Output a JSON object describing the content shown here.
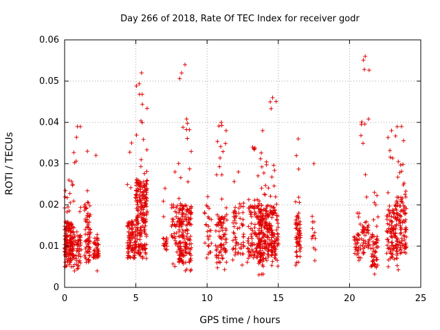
{
  "chart_data": {
    "type": "scatter",
    "title": "Day 266 of 2018, Rate Of TEC Index for receiver godr",
    "xlabel": "GPS time / hours",
    "ylabel": "ROTI / TECUs",
    "xlim": [
      0,
      25
    ],
    "ylim": [
      0,
      0.06
    ],
    "xticks": [
      0,
      5,
      10,
      15,
      20,
      25
    ],
    "xtick_labels": [
      "0",
      "5",
      "10",
      "15",
      "20",
      "25"
    ],
    "yticks": [
      0,
      0.01,
      0.02,
      0.03,
      0.04,
      0.05,
      0.06
    ],
    "ytick_labels": [
      "0",
      "0.01",
      "0.02",
      "0.03",
      "0.04",
      "0.05",
      "0.06"
    ],
    "grid": true,
    "marker": "plus",
    "color": "#e00000",
    "clusters": [
      {
        "x": [
          0.0,
          0.6
        ],
        "y": [
          0.006,
          0.016
        ],
        "n": 160,
        "spread": [
          0.005,
          0.026
        ]
      },
      {
        "x": [
          0.6,
          1.2
        ],
        "y": [
          0.005,
          0.013
        ],
        "n": 60,
        "spread": [
          0.004,
          0.039
        ]
      },
      {
        "x": [
          1.4,
          1.8
        ],
        "y": [
          0.006,
          0.02
        ],
        "n": 70,
        "spread": [
          0.006,
          0.033
        ]
      },
      {
        "x": [
          2.0,
          2.4
        ],
        "y": [
          0.007,
          0.012
        ],
        "n": 45,
        "spread": [
          0.004,
          0.032
        ]
      },
      {
        "x": [
          4.4,
          5.0
        ],
        "y": [
          0.007,
          0.016
        ],
        "n": 90,
        "spread": [
          0.007,
          0.035
        ]
      },
      {
        "x": [
          5.0,
          5.8
        ],
        "y": [
          0.008,
          0.026
        ],
        "n": 220,
        "spread": [
          0.007,
          0.052
        ]
      },
      {
        "x": [
          6.9,
          7.2
        ],
        "y": [
          0.009,
          0.012
        ],
        "n": 20,
        "spread": [
          0.006,
          0.024
        ]
      },
      {
        "x": [
          7.5,
          8.0
        ],
        "y": [
          0.008,
          0.02
        ],
        "n": 35,
        "spread": [
          0.005,
          0.028
        ]
      },
      {
        "x": [
          8.0,
          8.9
        ],
        "y": [
          0.006,
          0.02
        ],
        "n": 180,
        "spread": [
          0.004,
          0.054
        ]
      },
      {
        "x": [
          9.8,
          10.3
        ],
        "y": [
          0.008,
          0.02
        ],
        "n": 25,
        "spread": [
          0.007,
          0.022
        ]
      },
      {
        "x": [
          10.6,
          11.4
        ],
        "y": [
          0.006,
          0.018
        ],
        "n": 90,
        "spread": [
          0.004,
          0.04
        ]
      },
      {
        "x": [
          11.8,
          12.6
        ],
        "y": [
          0.008,
          0.02
        ],
        "n": 60,
        "spread": [
          0.005,
          0.028
        ]
      },
      {
        "x": [
          12.8,
          13.6
        ],
        "y": [
          0.007,
          0.02
        ],
        "n": 80,
        "spread": [
          0.006,
          0.034
        ]
      },
      {
        "x": [
          13.6,
          14.2
        ],
        "y": [
          0.006,
          0.02
        ],
        "n": 150,
        "spread": [
          0.003,
          0.038
        ]
      },
      {
        "x": [
          14.2,
          15.0
        ],
        "y": [
          0.007,
          0.02
        ],
        "n": 140,
        "spread": [
          0.005,
          0.046
        ]
      },
      {
        "x": [
          16.2,
          16.6
        ],
        "y": [
          0.006,
          0.018
        ],
        "n": 60,
        "spread": [
          0.005,
          0.036
        ]
      },
      {
        "x": [
          17.3,
          17.7
        ],
        "y": [
          0.006,
          0.018
        ],
        "n": 12,
        "spread": [
          0.006,
          0.03
        ]
      },
      {
        "x": [
          20.3,
          20.8
        ],
        "y": [
          0.007,
          0.013
        ],
        "n": 35,
        "spread": [
          0.006,
          0.018
        ]
      },
      {
        "x": [
          20.8,
          21.4
        ],
        "y": [
          0.008,
          0.016
        ],
        "n": 50,
        "spread": [
          0.006,
          0.056
        ]
      },
      {
        "x": [
          21.5,
          22.0
        ],
        "y": [
          0.005,
          0.013
        ],
        "n": 60,
        "spread": [
          0.003,
          0.023
        ]
      },
      {
        "x": [
          22.6,
          23.3
        ],
        "y": [
          0.008,
          0.02
        ],
        "n": 100,
        "spread": [
          0.004,
          0.038
        ]
      },
      {
        "x": [
          23.3,
          24.0
        ],
        "y": [
          0.008,
          0.022
        ],
        "n": 110,
        "spread": [
          0.004,
          0.039
        ]
      }
    ]
  }
}
